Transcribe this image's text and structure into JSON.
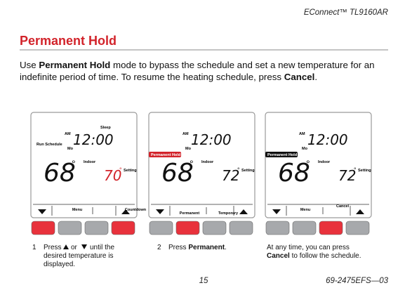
{
  "header": {
    "product": "EConnect™ TL9160AR"
  },
  "title": "Permanent Hold",
  "intro": {
    "lines": [
      [
        "Use ",
        "Permanent Hold",
        " mode to bypass the schedule and set a new temperature for an"
      ],
      [
        "indefinite period of time. To resume the heating schedule, press ",
        "Cancel",
        "."
      ]
    ]
  },
  "panels": [
    {
      "sleep": "Sleep",
      "am": "AM",
      "time": "12:00",
      "mode": "Run Schedule",
      "day": "Mo",
      "indoor_temp": "68",
      "indoor_degree": "°",
      "indoor_label": "Indoor",
      "set_temp": "70",
      "set_degree": "°",
      "setting_label": "Setting",
      "keys": [
        "Menu",
        "Countdown"
      ]
    },
    {
      "am": "AM",
      "time": "12:00",
      "mode": "Permanent Hold",
      "day": "Mo",
      "indoor_temp": "68",
      "indoor_degree": "°",
      "indoor_label": "Indoor",
      "set_temp": "72",
      "set_degree": "°",
      "setting_label": "Setting",
      "keys": [
        "Permanent",
        "Temporary"
      ]
    },
    {
      "am": "AM",
      "time": "12:00",
      "mode": "Permanent Hold",
      "day": "Mo",
      "indoor_temp": "68",
      "indoor_degree": "°",
      "indoor_label": "Indoor",
      "set_temp": "72",
      "set_degree": "°",
      "setting_label": "Setting",
      "keys": [
        "Menu",
        "Cancel"
      ]
    }
  ],
  "captions": [
    {
      "number": "1",
      "press": "Press ",
      "or": "or",
      "until": "until the",
      "line2": "desired temperature is",
      "line3": "displayed."
    },
    {
      "number": "2",
      "segments": [
        "Press ",
        "Permanent",
        "."
      ]
    },
    {
      "line1": "At any time, you can press",
      "line2": [
        "Cancel",
        " to follow the schedule."
      ]
    }
  ],
  "footer": {
    "page": "15",
    "doc_number": "69-2475EFS—03"
  }
}
